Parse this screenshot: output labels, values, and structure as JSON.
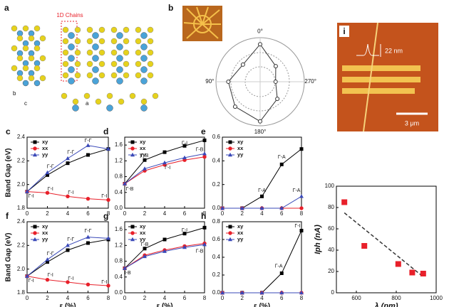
{
  "panels": [
    "a",
    "b",
    "i"
  ],
  "annotations": {
    "chains": "1D Chains",
    "height": "22 nm",
    "scale": "3 μm",
    "crystal_axes": [
      "b",
      "c",
      "a"
    ]
  },
  "chart_data": [
    {
      "type": "line",
      "panel": "c",
      "ylabel": "Band Gap (eV)",
      "x": [
        0,
        2,
        4,
        6,
        8
      ],
      "xlim": [
        0,
        8
      ],
      "xticks": [
        0,
        2,
        4,
        6,
        8
      ],
      "ylim": [
        1.8,
        2.4
      ],
      "yticks": [
        1.8,
        {
          "value": 2.0,
          "label": "2.0"
        },
        2.2,
        2.4
      ],
      "series": [
        {
          "name": "xy",
          "color": "#000000",
          "marker": "square",
          "values": [
            1.94,
            2.08,
            2.18,
            2.25,
            2.3
          ]
        },
        {
          "name": "xx",
          "color": "#e8202a",
          "marker": "circle",
          "values": [
            1.94,
            1.93,
            1.9,
            1.88,
            1.87
          ]
        },
        {
          "name": "yy",
          "color": "#3a49b8",
          "marker": "triangle",
          "values": [
            1.94,
            2.1,
            2.22,
            2.33,
            2.3
          ]
        }
      ],
      "annotations": [
        {
          "text": "Γ-I",
          "x": 0.4,
          "y": 1.9
        },
        {
          "text": "Γ-Γ",
          "x": 2.3,
          "y": 2.15
        },
        {
          "text": "Γ-Γ",
          "x": 4.3,
          "y": 2.27
        },
        {
          "text": "Γ-Γ",
          "x": 6,
          "y": 2.37
        },
        {
          "text": "Γ-I",
          "x": 2.3,
          "y": 1.96
        },
        {
          "text": "Γ-I",
          "x": 4.3,
          "y": 1.93
        },
        {
          "text": "Γ-I",
          "x": 7.6,
          "y": 1.9
        }
      ]
    },
    {
      "type": "line",
      "panel": "d",
      "x": [
        0,
        2,
        4,
        6,
        8
      ],
      "xlim": [
        0,
        8
      ],
      "xticks": [
        0,
        2,
        4,
        6,
        8
      ],
      "ylim": [
        0,
        1.8
      ],
      "yticks": [
        {
          "value": 0,
          "label": "0.0"
        },
        0.4,
        0.8,
        1.2,
        1.6
      ],
      "series": [
        {
          "name": "xy",
          "color": "#000000",
          "marker": "square",
          "values": [
            0.62,
            1.22,
            1.42,
            1.58,
            1.72
          ]
        },
        {
          "name": "xx",
          "color": "#e8202a",
          "marker": "circle",
          "values": [
            0.62,
            0.95,
            1.1,
            1.22,
            1.3
          ]
        },
        {
          "name": "yy",
          "color": "#3a49b8",
          "marker": "triangle",
          "values": [
            0.62,
            1.0,
            1.15,
            1.28,
            1.38
          ]
        }
      ],
      "annotations": [
        {
          "text": "Γ-I",
          "x": 6,
          "y": 1.64
        },
        {
          "text": "Γ-B",
          "x": 2,
          "y": 1.33
        },
        {
          "text": "Γ-B",
          "x": 7.5,
          "y": 1.48
        },
        {
          "text": "Γ-B",
          "x": 0.5,
          "y": 0.48
        },
        {
          "text": "Γ-I",
          "x": 4.3,
          "y": 1.02
        }
      ]
    },
    {
      "type": "line",
      "panel": "e",
      "x": [
        0,
        2,
        4,
        6,
        8
      ],
      "xlim": [
        0,
        8
      ],
      "xticks": [
        0,
        2,
        4,
        6,
        8
      ],
      "ylim": [
        0,
        0.6
      ],
      "yticks": [
        {
          "value": 0,
          "label": "0.0"
        },
        0.2,
        0.4,
        0.6
      ],
      "series": [
        {
          "name": "xy",
          "color": "#000000",
          "marker": "square",
          "values": [
            0,
            0,
            0.1,
            0.37,
            0.5
          ]
        },
        {
          "name": "xx",
          "color": "#e8202a",
          "marker": "circle",
          "values": [
            0,
            0,
            0,
            0,
            0
          ]
        },
        {
          "name": "yy",
          "color": "#3a49b8",
          "marker": "triangle",
          "values": [
            0,
            0,
            0,
            0,
            0.1
          ]
        }
      ],
      "annotations": [
        {
          "text": "Γ-A",
          "x": 4,
          "y": 0.15
        },
        {
          "text": "Γ-A",
          "x": 6,
          "y": 0.43
        },
        {
          "text": "Γ-A",
          "x": 7.5,
          "y": 0.15
        }
      ]
    },
    {
      "type": "line",
      "panel": "f",
      "ylabel": "Band Gap (eV)",
      "xlabel": "ε (%)",
      "x": [
        0,
        2,
        4,
        6,
        8
      ],
      "xlim": [
        0,
        8
      ],
      "xticks": [
        0,
        2,
        4,
        6,
        8
      ],
      "ylim": [
        1.8,
        2.4
      ],
      "yticks": [
        1.8,
        {
          "value": 2.0,
          "label": "2.0"
        },
        2.2,
        2.4
      ],
      "series": [
        {
          "name": "xy",
          "color": "#000000",
          "marker": "square",
          "values": [
            1.94,
            2.06,
            2.16,
            2.22,
            2.25
          ]
        },
        {
          "name": "xx",
          "color": "#e8202a",
          "marker": "circle",
          "values": [
            1.94,
            1.91,
            1.89,
            1.87,
            1.86
          ]
        },
        {
          "name": "yy",
          "color": "#3a49b8",
          "marker": "triangle",
          "values": [
            1.94,
            2.08,
            2.2,
            2.27,
            2.26
          ]
        }
      ],
      "annotations": [
        {
          "text": "Γ-I",
          "x": 0.4,
          "y": 1.9
        },
        {
          "text": "Γ-Γ",
          "x": 2.3,
          "y": 2.13
        },
        {
          "text": "Γ-Γ",
          "x": 4.3,
          "y": 2.25
        },
        {
          "text": "Γ-Γ",
          "x": 6,
          "y": 2.32
        },
        {
          "text": "Γ-I",
          "x": 2.3,
          "y": 1.95
        },
        {
          "text": "Γ-I",
          "x": 4.3,
          "y": 1.92
        },
        {
          "text": "Γ-I",
          "x": 7.6,
          "y": 1.89
        }
      ]
    },
    {
      "type": "line",
      "panel": "g",
      "xlabel": "ε (%)",
      "x": [
        0,
        2,
        4,
        6,
        8
      ],
      "xlim": [
        0,
        8
      ],
      "xticks": [
        0,
        2,
        4,
        6,
        8
      ],
      "ylim": [
        0,
        1.8
      ],
      "yticks": [
        {
          "value": 0,
          "label": "0.0"
        },
        0.4,
        0.8,
        1.2,
        1.6
      ],
      "series": [
        {
          "name": "xy",
          "color": "#000000",
          "marker": "square",
          "values": [
            0.62,
            1.12,
            1.35,
            1.5,
            1.65
          ]
        },
        {
          "name": "xx",
          "color": "#e8202a",
          "marker": "circle",
          "values": [
            0.62,
            0.95,
            1.08,
            1.18,
            1.25
          ]
        },
        {
          "name": "yy",
          "color": "#3a49b8",
          "marker": "triangle",
          "values": [
            0.62,
            0.92,
            1.05,
            1.15,
            1.22
          ]
        }
      ],
      "annotations": [
        {
          "text": "Γ-I",
          "x": 6,
          "y": 1.58
        },
        {
          "text": "Γ-B",
          "x": 2,
          "y": 1.22
        },
        {
          "text": "Γ-B",
          "x": 7.5,
          "y": 1.05
        },
        {
          "text": "I-B",
          "x": 0.3,
          "y": 0.5
        }
      ]
    },
    {
      "type": "line",
      "panel": "h",
      "xlabel": "ε (%)",
      "x": [
        0,
        2,
        4,
        6,
        8
      ],
      "xlim": [
        0,
        8
      ],
      "xticks": [
        0,
        2,
        4,
        6,
        8
      ],
      "ylim": [
        0,
        0.8
      ],
      "yticks": [
        {
          "value": 0,
          "label": "0.0"
        },
        0.2,
        0.4,
        0.6,
        0.8
      ],
      "series": [
        {
          "name": "xy",
          "color": "#000000",
          "marker": "square",
          "values": [
            0,
            0,
            0,
            0.22,
            0.7
          ]
        },
        {
          "name": "xx",
          "color": "#e8202a",
          "marker": "circle",
          "values": [
            0,
            0,
            0,
            0,
            0
          ]
        },
        {
          "name": "yy",
          "color": "#3a49b8",
          "marker": "triangle",
          "values": [
            0,
            0,
            0,
            0,
            0
          ]
        }
      ],
      "annotations": [
        {
          "text": "Γ-A",
          "x": 5.7,
          "y": 0.3
        },
        {
          "text": "Γ-I",
          "x": 7.6,
          "y": 0.75
        }
      ]
    },
    {
      "type": "scatter",
      "xlabel": "λ (nm)",
      "ylabel": "Iph (nA)",
      "x": [
        540,
        640,
        810,
        880,
        935
      ],
      "values": [
        85,
        44,
        27,
        19,
        18
      ],
      "color": "#e8202a",
      "xlim": [
        500,
        1000
      ],
      "xticks": [
        600,
        800,
        1000
      ],
      "ylim": [
        0,
        100
      ],
      "yticks": [
        0,
        20,
        40,
        60,
        80,
        100
      ],
      "fit": {
        "x": [
          540,
          935
        ],
        "y": [
          75,
          15
        ],
        "color": "#333333"
      }
    },
    {
      "type": "polar",
      "theta": [
        0,
        45,
        90,
        135,
        180,
        225,
        270,
        315
      ],
      "r": [
        0.85,
        0.55,
        0.72,
        0.8,
        0.9,
        0.55,
        0.35,
        0.5
      ],
      "color": "#333333",
      "thetaticks": [
        {
          "value": 0,
          "label": "0°"
        },
        {
          "value": 90,
          "label": "90°"
        },
        {
          "value": 180,
          "label": "180°"
        },
        {
          "value": 270,
          "label": "270°"
        }
      ]
    }
  ]
}
